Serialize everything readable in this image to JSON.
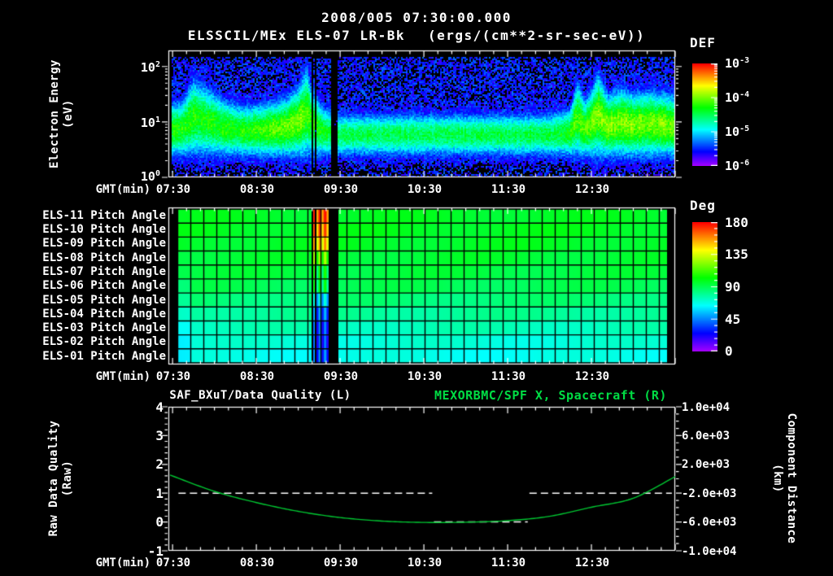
{
  "header": {
    "date_time": "2008/005 07:30:00.000",
    "instrument": "ELSSCIL/MEx ELS-07 LR-Bk",
    "units": "(ergs/(cm**2-sr-sec-eV))"
  },
  "colors": {
    "background": "#000000",
    "text": "#ffffff",
    "title_green": "#00dd44",
    "curve_green": "#00c832"
  },
  "spectrogram": {
    "ylabel": "Electron Energy",
    "ylabel_units": "(eV)",
    "yticks": [
      {
        "base": "10",
        "exp": "2"
      },
      {
        "base": "10",
        "exp": "1"
      },
      {
        "base": "10",
        "exp": "0"
      }
    ],
    "colorbar_title": "DEF",
    "colorbar_ticks": [
      {
        "base": "10",
        "exp": "-3"
      },
      {
        "base": "10",
        "exp": "-4"
      },
      {
        "base": "10",
        "exp": "-5"
      },
      {
        "base": "10",
        "exp": "-6"
      }
    ]
  },
  "time_axis": {
    "label": "GMT(min)",
    "ticks": [
      "07:30",
      "08:30",
      "09:30",
      "10:30",
      "11:30",
      "12:30"
    ]
  },
  "pitch": {
    "row_labels": [
      "ELS-11 Pitch Angle",
      "ELS-10 Pitch Angle",
      "ELS-09 Pitch Angle",
      "ELS-08 Pitch Angle",
      "ELS-07 Pitch Angle",
      "ELS-06 Pitch Angle",
      "ELS-05 Pitch Angle",
      "ELS-04 Pitch Angle",
      "ELS-03 Pitch Angle",
      "ELS-02 Pitch Angle",
      "ELS-01 Pitch Angle"
    ],
    "colorbar_title": "Deg",
    "colorbar_ticks": [
      "180",
      "135",
      "90",
      "45",
      "0"
    ]
  },
  "bottom": {
    "title_left": "SAF_BXuT/Data Quality (L)",
    "title_right": "MEXORBMC/SPF X, Spacecraft (R)",
    "ylabel_left": "Raw Data Quality",
    "ylabel_left_units": "(Raw)",
    "ylabel_right": "Component Distance",
    "ylabel_right_units": "(km)",
    "yticks_left": [
      "4",
      "3",
      "2",
      "1",
      "0",
      "-1"
    ],
    "yticks_right": [
      "1.0e+04",
      "6.0e+03",
      "2.0e+03",
      "-2.0e+03",
      "-6.0e+03",
      "-1.0e+04"
    ]
  },
  "chart_data": [
    {
      "id": "spectrogram",
      "type": "heatmap",
      "title": "ELSSCIL/MEx ELS-07 LR-Bk",
      "z_units": "ergs/(cm**2-sr-sec-eV)",
      "x_axis": {
        "label": "GMT(min)",
        "start_hours": 7.45,
        "end_hours": 13.5,
        "ticks": [
          "07:30",
          "08:30",
          "09:30",
          "10:30",
          "11:30",
          "12:30"
        ]
      },
      "y_axis": {
        "label": "Electron Energy (eV)",
        "scale": "log",
        "range": [
          1,
          200
        ]
      },
      "z_axis": {
        "label": "DEF",
        "scale": "log",
        "range": [
          1e-06,
          0.001
        ]
      },
      "features": [
        "Bright green band of enhanced electron flux near 8-30 eV across whole interval",
        "Elevated variable fluxes reaching higher energies 07:30-09:20",
        "Narrow data dropouts near 09:10 and wide black gap 09:24-09:28",
        "Quieter uniform band 09:30-12:15",
        "Re-intensified spiky fluxes after 12:15"
      ],
      "render": {
        "seed": 7,
        "band_bottom_frac": 0.16,
        "top_frac_envelope": [
          [
            7.45,
            0.6
          ],
          [
            7.62,
            0.62
          ],
          [
            7.75,
            0.8
          ],
          [
            7.9,
            0.74
          ],
          [
            8.1,
            0.64
          ],
          [
            8.35,
            0.58
          ],
          [
            8.6,
            0.6
          ],
          [
            8.85,
            0.64
          ],
          [
            9.0,
            0.72
          ],
          [
            9.1,
            0.88
          ],
          [
            9.17,
            0.7
          ],
          [
            9.3,
            0.58
          ],
          [
            9.5,
            0.52
          ],
          [
            10.0,
            0.52
          ],
          [
            11.0,
            0.52
          ],
          [
            12.0,
            0.52
          ],
          [
            12.25,
            0.56
          ],
          [
            12.33,
            0.78
          ],
          [
            12.42,
            0.62
          ],
          [
            12.5,
            0.7
          ],
          [
            12.58,
            0.84
          ],
          [
            12.7,
            0.66
          ],
          [
            12.85,
            0.72
          ],
          [
            13.0,
            0.68
          ],
          [
            13.2,
            0.7
          ],
          [
            13.5,
            0.66
          ]
        ],
        "intensity_envelope": [
          [
            7.45,
            0.6
          ],
          [
            8.3,
            0.58
          ],
          [
            9.0,
            0.68
          ],
          [
            9.3,
            0.55
          ],
          [
            9.5,
            0.5
          ],
          [
            12.1,
            0.52
          ],
          [
            12.3,
            0.62
          ],
          [
            12.6,
            0.68
          ],
          [
            13.5,
            0.66
          ]
        ],
        "black_columns": [
          [
            9.155,
            9.175
          ],
          [
            9.19,
            9.215
          ],
          [
            9.4,
            9.47
          ]
        ],
        "background": {
          "level": [
            0.08,
            0.24
          ],
          "black_fraction": 0.3
        }
      }
    },
    {
      "id": "pitch",
      "type": "heatmap",
      "title": "ELS-01..ELS-11 Pitch Angle",
      "z_axis": {
        "label": "Deg",
        "range": [
          0,
          180
        ]
      },
      "rows_top_to_bottom": [
        "ELS-11",
        "ELS-10",
        "ELS-09",
        "ELS-08",
        "ELS-07",
        "ELS-06",
        "ELS-05",
        "ELS-04",
        "ELS-03",
        "ELS-02",
        "ELS-01"
      ],
      "rows_deg": [
        97,
        98,
        97,
        95,
        93,
        90,
        85,
        80,
        75,
        70,
        67
      ],
      "stripe_interval": [
        9.175,
        9.36
      ],
      "stripe_deg": [
        168,
        160,
        148,
        118,
        96,
        92,
        60,
        42,
        35,
        33,
        38
      ],
      "black_columns": [
        [
          9.155,
          9.175
        ],
        [
          9.19,
          9.215
        ],
        [
          9.363,
          9.47
        ]
      ],
      "left_edge_offset_deg": -7,
      "features": [
        "Pitch angles near 90-100 deg (green) on top anodes grading to 65-75 deg (cyan) on bottom anodes",
        "Disturbance near 09:15-09:25: high angles (red/orange) on top rows, low angles (blue) on bottom rows",
        "Black data gap 09:25-09:28"
      ]
    },
    {
      "id": "quality_distance",
      "type": "line",
      "x_axis": {
        "label": "GMT(min)",
        "start_hours": 7.45,
        "end_hours": 13.5
      },
      "y_left": {
        "label": "Raw Data Quality (Raw)",
        "range": [
          -1,
          4
        ]
      },
      "y_right": {
        "label": "Component Distance (km)",
        "range": [
          -10000,
          10000
        ]
      },
      "series": [
        {
          "name": "SAF_BXuT/Data Quality (L)",
          "axis": "left",
          "style": "dashed-white",
          "segments": [
            {
              "t": [
                7.57,
                10.6
              ],
              "value": 1
            },
            {
              "t": [
                10.62,
                11.74
              ],
              "value": 0
            },
            {
              "t": [
                11.76,
                13.46
              ],
              "value": 1
            }
          ]
        },
        {
          "name": "MEXORBMC/SPF X, Spacecraft (R)",
          "axis": "right",
          "style": "solid-green",
          "points_time_hours": [
            7.47,
            8.0,
            8.5,
            9.0,
            9.5,
            10.0,
            10.5,
            11.0,
            11.5,
            12.0,
            12.5,
            13.0,
            13.5
          ],
          "points_km": [
            520,
            -1750,
            -3300,
            -4520,
            -5380,
            -5870,
            -6060,
            -6030,
            -5820,
            -5210,
            -3950,
            -2700,
            300
          ]
        }
      ]
    }
  ]
}
